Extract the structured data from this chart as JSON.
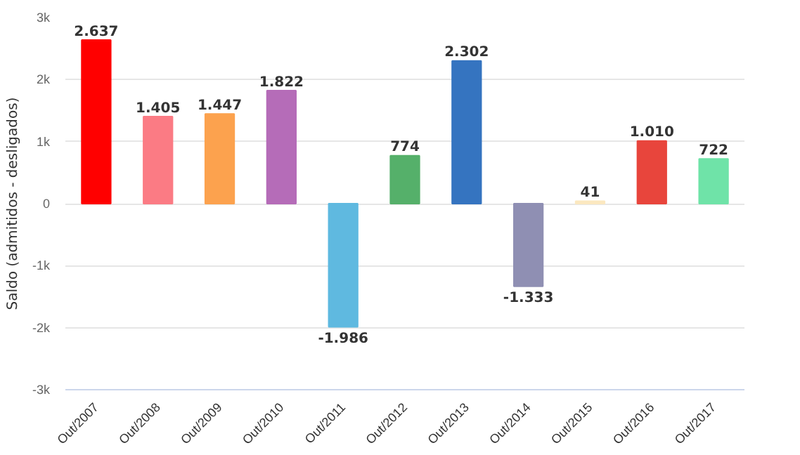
{
  "chart_data": {
    "type": "bar",
    "ylabel": "Saldo (admitidos - desligados)",
    "categories": [
      "Out/2007",
      "Out/2008",
      "Out/2009",
      "Out/2010",
      "Out/2011",
      "Out/2012",
      "Out/2013",
      "Out/2014",
      "Out/2015",
      "Out/2016",
      "Out/2017"
    ],
    "values": [
      2637,
      1405,
      1447,
      1822,
      -1986,
      774,
      2302,
      -1333,
      41,
      1010,
      722
    ],
    "value_labels": [
      "2.637",
      "1.405",
      "1.447",
      "1.822",
      "-1.986",
      "774",
      "2.302",
      "-1.333",
      "41",
      "1.010",
      "722"
    ],
    "colors": [
      "#ff0000",
      "#fb7b84",
      "#fca24e",
      "#b56cb8",
      "#5fb9e0",
      "#55b06a",
      "#3574c0",
      "#8f8fb3",
      "#fbe8c0",
      "#e8453c",
      "#6fe3a8"
    ],
    "ylim": [
      -3000,
      3000
    ],
    "yticks": [
      {
        "value": -3000,
        "label": "-3k"
      },
      {
        "value": -2000,
        "label": "-2k"
      },
      {
        "value": -1000,
        "label": "-1k"
      },
      0,
      {
        "value": 1000,
        "label": "1k"
      },
      {
        "value": 2000,
        "label": "2k"
      },
      {
        "value": 3000,
        "label": "3k"
      }
    ],
    "grid": "y"
  }
}
